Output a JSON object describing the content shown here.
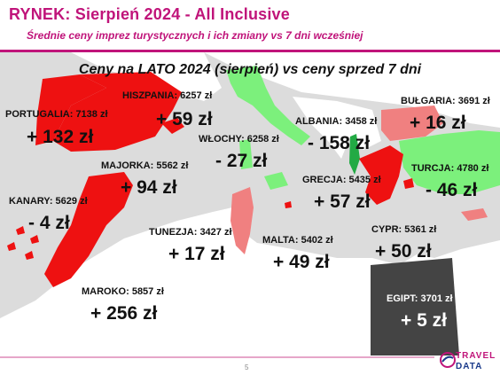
{
  "header": {
    "title": "RYNEK: Sierpień 2024 - All Inclusive",
    "subtitle": "Średnie ceny imprez turystycznych i ich zmiany vs 7 dni wcześniej"
  },
  "map": {
    "title": "Ceny na LATO 2024 (sierpień) vs ceny sprzed 7 dni",
    "colors": {
      "sea": "#dcdcdc",
      "land": "#ffffff",
      "increase_high": "#ee1111",
      "increase_low": "#f08080",
      "decrease": "#7cf07c",
      "decrease_strong": "#22aa44",
      "egypt": "#444444"
    },
    "destinations": [
      {
        "key": "portugalia",
        "name": "PORTUGALIA: 7138 zł",
        "change": "+ 132 zł"
      },
      {
        "key": "hiszpania",
        "name": "HISZPANIA: 6257 zł",
        "change": "+ 59 zł"
      },
      {
        "key": "majorka",
        "name": "MAJORKA: 5562 zł",
        "change": "+ 94 zł"
      },
      {
        "key": "kanary",
        "name": "KANARY: 5629 zł",
        "change": "- 4 zł"
      },
      {
        "key": "maroko",
        "name": "MAROKO: 5857 zł",
        "change": "+ 256 zł"
      },
      {
        "key": "wlochy",
        "name": "WŁOCHY: 6258 zł",
        "change": "- 27 zł"
      },
      {
        "key": "albania",
        "name": "ALBANIA: 3458 zł",
        "change": "- 158 zł"
      },
      {
        "key": "bulgaria",
        "name": "BUŁGARIA: 3691 zł",
        "change": "+ 16 zł"
      },
      {
        "key": "turcja",
        "name": "TURCJA: 4780 zł",
        "change": "- 46 zł"
      },
      {
        "key": "grecja",
        "name": "GRECJA: 5435 zł",
        "change": "+ 57 zł"
      },
      {
        "key": "tunezja",
        "name": "TUNEZJA: 3427 zł",
        "change": "+ 17 zł"
      },
      {
        "key": "malta",
        "name": "MALTA: 5402 zł",
        "change": "+ 49 zł"
      },
      {
        "key": "cypr",
        "name": "CYPR: 5361 zł",
        "change": "+ 50 zł"
      },
      {
        "key": "egipt",
        "name": "EGIPT: 3701 zł",
        "change": "+ 5 zł"
      }
    ]
  },
  "footer": {
    "page_number": "5",
    "logo_top": "TRAVEL",
    "logo_bottom": "DATA"
  }
}
